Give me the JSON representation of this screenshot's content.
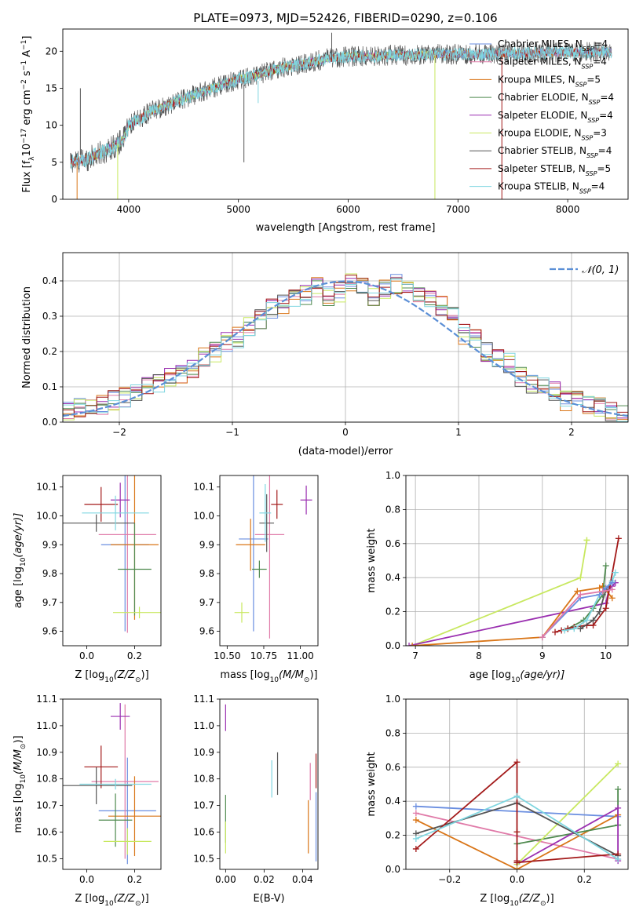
{
  "colors": {
    "Chabrier MILES": "#6a8ee0",
    "Salpeter MILES": "#e07aa8",
    "Kroupa MILES": "#d97517",
    "Chabrier ELODIE": "#4f8a4f",
    "Salpeter ELODIE": "#9a2fb0",
    "Kroupa ELODIE": "#c8e860",
    "Chabrier STELIB": "#555555",
    "Salpeter STELIB": "#a31a1a",
    "Kroupa STELIB": "#7fd6e0",
    "normal": "#5b8fd6"
  },
  "chart_data": [
    {
      "id": "spectrum",
      "type": "line",
      "title": "PLATE=0973, MJD=52426, FIBERID=0290, z=0.106",
      "xlabel": "wavelength [Angstrom, rest frame]",
      "ylabel_main": "Flux [f",
      "ylabel_sub": "λ",
      "ylabel_mid": "10",
      "ylabel_sup": "−17",
      "ylabel_rest": " erg cm",
      "ylabel_sup2": "−2",
      "ylabel_rest2": " s",
      "ylabel_sup3": "−1",
      "ylabel_rest3": " A",
      "ylabel_sup4": "−1",
      "ylabel_end": "]",
      "xlim": [
        3400,
        8550
      ],
      "ylim": [
        0,
        23
      ],
      "xticks": [
        4000,
        5000,
        6000,
        7000,
        8000
      ],
      "yticks": [
        0,
        5,
        10,
        15,
        20
      ],
      "legend_position": "right",
      "legend": [
        {
          "name": "Chabrier MILES",
          "nssp": "4"
        },
        {
          "name": "Salpeter MILES",
          "nssp": "4"
        },
        {
          "name": "Kroupa MILES",
          "nssp": "5"
        },
        {
          "name": "Chabrier ELODIE",
          "nssp": "4"
        },
        {
          "name": "Salpeter ELODIE",
          "nssp": "4"
        },
        {
          "name": "Kroupa ELODIE",
          "nssp": "3"
        },
        {
          "name": "Chabrier STELIB",
          "nssp": "4"
        },
        {
          "name": "Salpeter STELIB",
          "nssp": "5"
        },
        {
          "name": "Kroupa STELIB",
          "nssp": "4"
        }
      ],
      "legend_prefix": "N",
      "legend_sub": "SSP",
      "legend_eq": "=",
      "continuum": {
        "x": [
          3450,
          3600,
          3800,
          3950,
          4000,
          4200,
          4500,
          4800,
          5000,
          5200,
          5400,
          5600,
          5800,
          6000,
          6200,
          6400,
          6600,
          6800,
          7000,
          7200,
          7400,
          7600,
          7800,
          8000,
          8200,
          8400
        ],
        "y": [
          5.0,
          5.3,
          6.6,
          8.0,
          10.0,
          11.8,
          13.6,
          15.2,
          16.2,
          16.9,
          17.8,
          18.3,
          19.0,
          19.3,
          19.3,
          19.5,
          19.5,
          19.6,
          19.6,
          19.6,
          19.7,
          19.7,
          19.8,
          19.8,
          19.9,
          19.9
        ]
      },
      "spikes": [
        {
          "x": 6790,
          "from": 19.5,
          "to": 0,
          "series": "Kroupa ELODIE"
        },
        {
          "x": 7400,
          "from": 19.6,
          "to": 0,
          "series": "Salpeter STELIB"
        },
        {
          "x": 3900,
          "from": 7.5,
          "to": 0,
          "series": "Kroupa ELODIE"
        },
        {
          "x": 5050,
          "from": 15.5,
          "to": 5,
          "series": "Chabrier STELIB"
        },
        {
          "x": 5180,
          "from": 16.0,
          "to": 13,
          "series": "Kroupa STELIB"
        },
        {
          "x": 5850,
          "from": 19.0,
          "to": 22.5,
          "series": "Chabrier STELIB"
        },
        {
          "x": 3560,
          "from": 6,
          "to": 15,
          "series": "Chabrier STELIB"
        },
        {
          "x": 3530,
          "from": 5,
          "to": 0,
          "series": "Kroupa MILES"
        }
      ]
    },
    {
      "id": "residuals",
      "type": "histogram",
      "xlabel": "(data-model)/error",
      "ylabel": "Normed distribution",
      "xlim": [
        -2.5,
        2.5
      ],
      "ylim": [
        0,
        0.48
      ],
      "xticks": [
        -2,
        -1,
        0,
        1,
        2
      ],
      "yticks": [
        0.0,
        0.1,
        0.2,
        0.3,
        0.4
      ],
      "grid": true,
      "legend_position": "top-right",
      "legend": [
        "𝒩(0, 1)"
      ],
      "bin_edges": [
        -2.5,
        -2.4,
        -2.3,
        -2.2,
        -2.1,
        -2.0,
        -1.9,
        -1.8,
        -1.7,
        -1.6,
        -1.5,
        -1.4,
        -1.3,
        -1.2,
        -1.1,
        -1.0,
        -0.9,
        -0.8,
        -0.7,
        -0.6,
        -0.5,
        -0.4,
        -0.3,
        -0.2,
        -0.1,
        0.0,
        0.1,
        0.2,
        0.3,
        0.4,
        0.5,
        0.6,
        0.7,
        0.8,
        0.9,
        1.0,
        1.1,
        1.2,
        1.3,
        1.4,
        1.5,
        1.6,
        1.7,
        1.8,
        1.9,
        2.0,
        2.1,
        2.2,
        2.3,
        2.4,
        2.5
      ],
      "series_order": [
        "Chabrier MILES",
        "Salpeter MILES",
        "Kroupa MILES",
        "Chabrier ELODIE",
        "Salpeter ELODIE",
        "Kroupa ELODIE",
        "Chabrier STELIB",
        "Salpeter STELIB",
        "Kroupa STELIB"
      ],
      "jitter_seed": 7,
      "histograms": {
        "Chabrier MILES": [
          0.03,
          0.04,
          0.05,
          0.05,
          0.06,
          0.07,
          0.08,
          0.1,
          0.11,
          0.13,
          0.14,
          0.15,
          0.18,
          0.2,
          0.23,
          0.24,
          0.27,
          0.29,
          0.32,
          0.33,
          0.35,
          0.36,
          0.38,
          0.36,
          0.37,
          0.4,
          0.39,
          0.36,
          0.38,
          0.39,
          0.37,
          0.36,
          0.35,
          0.33,
          0.3,
          0.25,
          0.24,
          0.2,
          0.18,
          0.17,
          0.13,
          0.11,
          0.1,
          0.09,
          0.06,
          0.06,
          0.05,
          0.04,
          0.03,
          0.02
        ],
        "kde_note": ""
      },
      "normal_curve": {
        "mu": 0,
        "sigma": 1
      }
    },
    {
      "id": "age_vs_Z",
      "type": "errorbar",
      "xlabel": "Z [log",
      "xlabel_sub": "10",
      "xlabel_tail": "(Z/Z",
      "xlabel_sun": "⊙",
      "xlabel_end": ")]",
      "ylabel": "age  [log",
      "ylabel_sub": "10",
      "ylabel_tail": "(age/yr)]",
      "xlim": [
        -0.1,
        0.31
      ],
      "ylim": [
        9.55,
        10.14
      ],
      "xticks": [
        0.0,
        0.2
      ],
      "yticks": [
        9.6,
        9.7,
        9.8,
        9.9,
        10.0,
        10.1
      ],
      "points": [
        {
          "series": "Chabrier MILES",
          "x": 0.16,
          "xerr": 0.1,
          "y": 9.9,
          "yerr": 0.3
        },
        {
          "series": "Salpeter MILES",
          "x": 0.17,
          "xerr": 0.12,
          "y": 9.935,
          "yerr": 0.34
        },
        {
          "series": "Kroupa MILES",
          "x": 0.2,
          "xerr": 0.1,
          "y": 9.9,
          "yerr": 0.26
        },
        {
          "series": "Chabrier ELODIE",
          "x": 0.2,
          "xerr": 0.07,
          "y": 9.815,
          "yerr": 0.16
        },
        {
          "series": "Salpeter ELODIE",
          "x": 0.14,
          "xerr": 0.04,
          "y": 10.055,
          "yerr": 0.06
        },
        {
          "series": "Kroupa ELODIE",
          "x": 0.22,
          "xerr": 0.11,
          "y": 9.665,
          "yerr": 0.02
        },
        {
          "series": "Chabrier STELIB",
          "x": 0.04,
          "xerr": 0.16,
          "y": 9.975,
          "yerr": 0.03
        },
        {
          "series": "Salpeter STELIB",
          "x": 0.06,
          "xerr": 0.07,
          "y": 10.04,
          "yerr": 0.06
        },
        {
          "series": "Kroupa STELIB",
          "x": 0.12,
          "xerr": 0.14,
          "y": 10.01,
          "yerr": 0.06
        }
      ]
    },
    {
      "id": "age_vs_mass",
      "type": "errorbar",
      "xlabel": "mass [log",
      "xlabel_sub": "10",
      "xlabel_tail": "(M/M",
      "xlabel_sun": "⊙",
      "xlabel_end": ")]",
      "xlim": [
        10.45,
        11.12
      ],
      "ylim": [
        9.55,
        10.14
      ],
      "xticks": [
        10.5,
        10.75,
        11.0
      ],
      "xtick_labels": [
        "10.50",
        "10.75",
        "11.00"
      ],
      "yticks": [
        9.6,
        9.7,
        9.8,
        9.9,
        10.0,
        10.1
      ],
      "points": [
        {
          "series": "Chabrier MILES",
          "x": 10.68,
          "xerr": 0.1,
          "y": 9.92,
          "yerr": 0.32
        },
        {
          "series": "Salpeter MILES",
          "x": 10.79,
          "xerr": 0.1,
          "y": 9.935,
          "yerr": 0.36
        },
        {
          "series": "Kroupa MILES",
          "x": 10.66,
          "xerr": 0.1,
          "y": 9.9,
          "yerr": 0.09
        },
        {
          "series": "Chabrier ELODIE",
          "x": 10.72,
          "xerr": 0.05,
          "y": 9.815,
          "yerr": 0.03
        },
        {
          "series": "Salpeter ELODIE",
          "x": 11.04,
          "xerr": 0.04,
          "y": 10.055,
          "yerr": 0.05
        },
        {
          "series": "Kroupa ELODIE",
          "x": 10.6,
          "xerr": 0.05,
          "y": 9.665,
          "yerr": 0.035
        },
        {
          "series": "Chabrier STELIB",
          "x": 10.77,
          "xerr": 0.05,
          "y": 9.975,
          "yerr": 0.1
        },
        {
          "series": "Salpeter STELIB",
          "x": 10.84,
          "xerr": 0.04,
          "y": 10.04,
          "yerr": 0.05
        },
        {
          "series": "Kroupa STELIB",
          "x": 10.76,
          "xerr": 0.04,
          "y": 10.01,
          "yerr": 0.1
        }
      ]
    },
    {
      "id": "mass_weight_vs_age",
      "type": "line",
      "xlabel": "age  [log",
      "xlabel_sub": "10",
      "xlabel_tail": "(age/yr)]",
      "ylabel": "mass weight",
      "xlim": [
        6.85,
        10.35
      ],
      "ylim": [
        0.0,
        1.0
      ],
      "xticks": [
        7,
        8,
        9,
        10
      ],
      "yticks": [
        0.0,
        0.2,
        0.4,
        0.6,
        0.8,
        1.0
      ],
      "grid": true,
      "series": [
        {
          "name": "Kroupa ELODIE",
          "x": [
            6.95,
            9.6,
            9.7,
            9.7
          ],
          "y": [
            0.0,
            0.4,
            0.62,
            0.62
          ]
        },
        {
          "name": "Salpeter ELODIE",
          "x": [
            6.9,
            10.0,
            10.05,
            10.1,
            10.15
          ],
          "y": [
            0.0,
            0.25,
            0.33,
            0.35,
            0.37
          ]
        },
        {
          "name": "Kroupa MILES",
          "x": [
            6.95,
            9.0,
            9.55,
            9.9,
            9.95,
            10.1
          ],
          "y": [
            0.0,
            0.05,
            0.32,
            0.34,
            0.35,
            0.28
          ]
        },
        {
          "name": "Chabrier ELODIE",
          "x": [
            9.4,
            9.65,
            9.8,
            9.95,
            10.0
          ],
          "y": [
            0.1,
            0.15,
            0.22,
            0.3,
            0.47
          ]
        },
        {
          "name": "Salpeter STELIB",
          "x": [
            9.2,
            9.3,
            9.4,
            9.5,
            9.7,
            9.8,
            10.0,
            10.2
          ],
          "y": [
            0.08,
            0.09,
            0.1,
            0.11,
            0.12,
            0.12,
            0.22,
            0.63
          ]
        },
        {
          "name": "Chabrier STELIB",
          "x": [
            9.6,
            9.8,
            9.9,
            10.0,
            10.1
          ],
          "y": [
            0.1,
            0.15,
            0.2,
            0.33,
            0.38
          ]
        },
        {
          "name": "Kroupa STELIB",
          "x": [
            9.35,
            9.5,
            9.7,
            9.9,
            10.1,
            10.15
          ],
          "y": [
            0.09,
            0.1,
            0.15,
            0.3,
            0.38,
            0.43
          ]
        },
        {
          "name": "Chabrier MILES",
          "x": [
            9.0,
            9.6,
            9.9,
            10.0,
            10.1
          ],
          "y": [
            0.05,
            0.28,
            0.3,
            0.34,
            0.37
          ]
        },
        {
          "name": "Salpeter MILES",
          "x": [
            9.0,
            9.6,
            9.95,
            10.1
          ],
          "y": [
            0.05,
            0.3,
            0.32,
            0.33
          ]
        }
      ]
    },
    {
      "id": "mass_vs_Z",
      "type": "errorbar",
      "xlabel": "Z [log",
      "xlabel_sub": "10",
      "xlabel_tail": "(Z/Z",
      "xlabel_sun": "⊙",
      "xlabel_end": ")]",
      "ylabel": "mass [log",
      "ylabel_sub": "10",
      "ylabel_tail": "(M/M",
      "ylabel_sun": "⊙",
      "ylabel_end": ")]",
      "xlim": [
        -0.1,
        0.31
      ],
      "ylim": [
        10.46,
        11.1
      ],
      "xticks": [
        0.0,
        0.2
      ],
      "yticks": [
        10.5,
        10.6,
        10.7,
        10.8,
        10.9,
        11.0,
        11.1
      ],
      "points": [
        {
          "series": "Chabrier MILES",
          "x": 0.17,
          "xerr": 0.12,
          "y": 10.68,
          "yerr": 0.2
        },
        {
          "series": "Salpeter MILES",
          "x": 0.16,
          "xerr": 0.14,
          "y": 10.79,
          "yerr": 0.29
        },
        {
          "series": "Kroupa MILES",
          "x": 0.2,
          "xerr": 0.11,
          "y": 10.66,
          "yerr": 0.15
        },
        {
          "series": "Chabrier ELODIE",
          "x": 0.12,
          "xerr": 0.07,
          "y": 10.645,
          "yerr": 0.1
        },
        {
          "series": "Salpeter ELODIE",
          "x": 0.14,
          "xerr": 0.04,
          "y": 11.035,
          "yerr": 0.05
        },
        {
          "series": "Kroupa ELODIE",
          "x": 0.17,
          "xerr": 0.1,
          "y": 10.565,
          "yerr": 0.05
        },
        {
          "series": "Chabrier STELIB",
          "x": 0.04,
          "xerr": 0.15,
          "y": 10.775,
          "yerr": 0.07
        },
        {
          "series": "Salpeter STELIB",
          "x": 0.06,
          "xerr": 0.07,
          "y": 10.845,
          "yerr": 0.08
        },
        {
          "series": "Kroupa STELIB",
          "x": 0.12,
          "xerr": 0.15,
          "y": 10.78,
          "yerr": 0.02
        }
      ]
    },
    {
      "id": "mass_vs_ebv",
      "type": "errorbar",
      "xlabel": "E(B-V)",
      "xlim": [
        -0.003,
        0.048
      ],
      "ylim": [
        10.46,
        11.1
      ],
      "xticks": [
        0.0,
        0.02,
        0.04
      ],
      "xtick_labels": [
        "0.00",
        "0.02",
        "0.04"
      ],
      "yticks": [
        10.5,
        10.6,
        10.7,
        10.8,
        10.9,
        11.0,
        11.1
      ],
      "points": [
        {
          "series": "Chabrier MILES",
          "x": 0.047,
          "xerr": 0,
          "y": 10.62,
          "yerr": 0.13
        },
        {
          "series": "Salpeter MILES",
          "x": 0.044,
          "xerr": 0,
          "y": 10.79,
          "yerr": 0.07
        },
        {
          "series": "Kroupa MILES",
          "x": 0.043,
          "xerr": 0,
          "y": 10.62,
          "yerr": 0.1
        },
        {
          "series": "Chabrier ELODIE",
          "x": 0.0,
          "xerr": 0,
          "y": 10.65,
          "yerr": 0.09
        },
        {
          "series": "Salpeter ELODIE",
          "x": 0.0,
          "xerr": 0,
          "y": 11.03,
          "yerr": 0.05
        },
        {
          "series": "Kroupa ELODIE",
          "x": 0.0,
          "xerr": 0,
          "y": 10.58,
          "yerr": 0.06
        },
        {
          "series": "Chabrier STELIB",
          "x": 0.027,
          "xerr": 0,
          "y": 10.82,
          "yerr": 0.08
        },
        {
          "series": "Salpeter STELIB",
          "x": 0.047,
          "xerr": 0,
          "y": 10.83,
          "yerr": 0.065
        },
        {
          "series": "Kroupa STELIB",
          "x": 0.024,
          "xerr": 0,
          "y": 10.8,
          "yerr": 0.07
        }
      ]
    },
    {
      "id": "mass_weight_vs_Z",
      "type": "line",
      "xlabel": "Z [log",
      "xlabel_sub": "10",
      "xlabel_tail": "(Z/Z",
      "xlabel_sun": "⊙",
      "xlabel_end": ")]",
      "ylabel": "mass weight",
      "xlim": [
        -0.33,
        0.33
      ],
      "ylim": [
        0.0,
        1.0
      ],
      "xticks": [
        -0.2,
        0.0,
        0.2
      ],
      "xtick_labels": [
        "−0.2",
        "0.0",
        "0.2"
      ],
      "yticks": [
        0.0,
        0.2,
        0.4,
        0.6,
        0.8,
        1.0
      ],
      "grid": true,
      "series": [
        {
          "name": "Chabrier MILES",
          "x": [
            -0.3,
            0.3
          ],
          "y": [
            0.37,
            0.31
          ]
        },
        {
          "name": "Salpeter MILES",
          "x": [
            -0.3,
            0.3
          ],
          "y": [
            0.33,
            0.06
          ]
        },
        {
          "name": "Kroupa MILES",
          "x": [
            -0.3,
            0.0,
            0.3
          ],
          "y": [
            0.29,
            0.0,
            0.32
          ]
        },
        {
          "name": "Chabrier ELODIE",
          "x": [
            0.0,
            0.3,
            0.3
          ],
          "y": [
            0.15,
            0.26,
            0.47
          ]
        },
        {
          "name": "Salpeter ELODIE",
          "x": [
            0.0,
            0.3,
            0.3
          ],
          "y": [
            0.03,
            0.36,
            0.05
          ]
        },
        {
          "name": "Kroupa ELODIE",
          "x": [
            0.0,
            0.3
          ],
          "y": [
            0.03,
            0.62
          ]
        },
        {
          "name": "Chabrier STELIB",
          "x": [
            -0.3,
            0.0,
            0.3
          ],
          "y": [
            0.21,
            0.39,
            0.08
          ]
        },
        {
          "name": "Salpeter STELIB",
          "x": [
            -0.3,
            0.0,
            0.0,
            0.0,
            0.0,
            0.3
          ],
          "y": [
            0.12,
            0.63,
            0.05,
            0.22,
            0.04,
            0.09
          ]
        },
        {
          "name": "Kroupa STELIB",
          "x": [
            -0.3,
            0.0,
            0.3
          ],
          "y": [
            0.18,
            0.43,
            0.06
          ]
        }
      ]
    }
  ]
}
